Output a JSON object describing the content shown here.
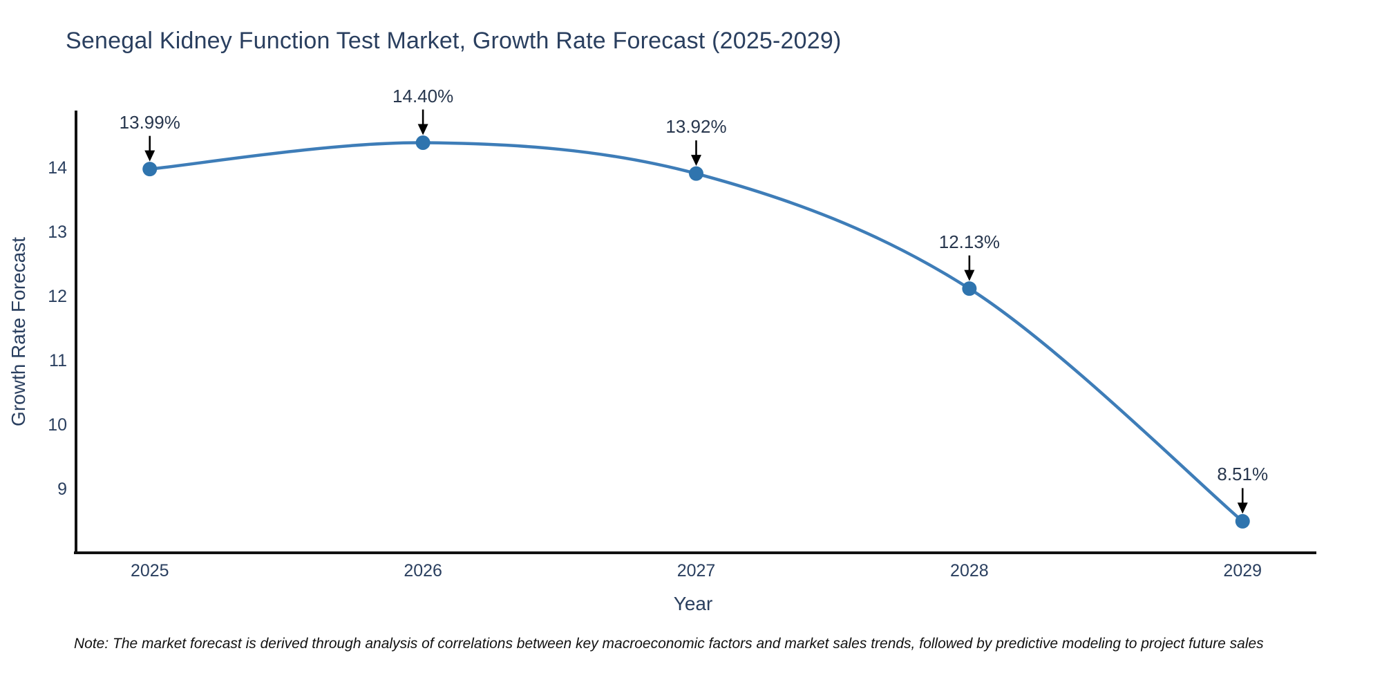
{
  "title": "Senegal Kidney Function Test Market, Growth Rate Forecast (2025-2029)",
  "note": "Note: The market forecast is derived through analysis of correlations between key macroeconomic factors and market sales trends, followed by predictive modeling to project future sales",
  "chart_data": {
    "type": "line",
    "title": "Senegal Kidney Function Test Market, Growth Rate Forecast (2025-2029)",
    "xlabel": "Year",
    "ylabel": "Growth Rate Forecast",
    "x": [
      2025,
      2026,
      2027,
      2028,
      2029
    ],
    "values": [
      13.99,
      14.4,
      13.92,
      12.13,
      8.51
    ],
    "point_labels": [
      "13.99%",
      "14.40%",
      "13.92%",
      "12.13%",
      "8.51%"
    ],
    "xticks": [
      "2025",
      "2026",
      "2027",
      "2028",
      "2029"
    ],
    "yticks": [
      9,
      10,
      11,
      12,
      13,
      14
    ],
    "xlim": [
      2024.73,
      2029.27
    ],
    "ylim": [
      8.02,
      14.9
    ],
    "grid": false,
    "legend": false,
    "annotations_have_arrows": true,
    "colors": {
      "line": "#3e7db8",
      "marker": "#2f74ae",
      "axis": "#111111",
      "text": "#2a3f5f",
      "annotation_text": "#27364d",
      "arrow": "#000000",
      "note_text": "#111111",
      "background": "#ffffff"
    }
  }
}
